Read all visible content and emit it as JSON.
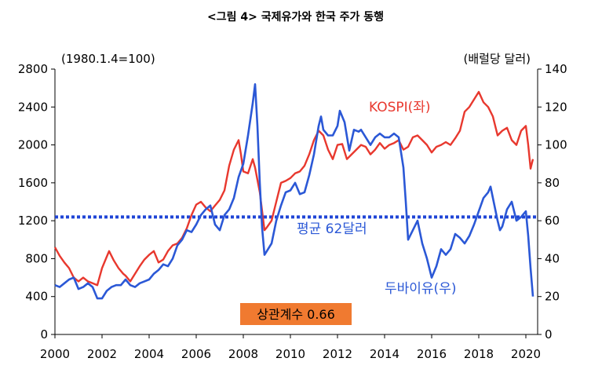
{
  "chart_data": {
    "type": "line",
    "title": "<그림 4> 국제유가와 한국 주가 동행",
    "left_unit": "(1980.1.4=100)",
    "right_unit": "(배럴당 달러)",
    "x_ticks": [
      "2000",
      "2002",
      "2004",
      "2006",
      "2008",
      "2010",
      "2012",
      "2014",
      "2016",
      "2018",
      "2020"
    ],
    "y_left_ticks": [
      0,
      400,
      800,
      1200,
      1600,
      2000,
      2400,
      2800
    ],
    "y_right_ticks": [
      0,
      20,
      40,
      60,
      80,
      100,
      120,
      140
    ],
    "ylim_left": [
      0,
      2800
    ],
    "ylim_right": [
      0,
      140
    ],
    "xlim": [
      2000,
      2020.5
    ],
    "series": [
      {
        "name": "KOSPI(좌)",
        "axis": "left",
        "color": "#e8382e",
        "points": [
          [
            2000.0,
            920
          ],
          [
            2000.2,
            830
          ],
          [
            2000.4,
            760
          ],
          [
            2000.6,
            700
          ],
          [
            2000.8,
            600
          ],
          [
            2001.0,
            560
          ],
          [
            2001.2,
            600
          ],
          [
            2001.4,
            560
          ],
          [
            2001.6,
            540
          ],
          [
            2001.8,
            520
          ],
          [
            2002.0,
            700
          ],
          [
            2002.2,
            820
          ],
          [
            2002.3,
            880
          ],
          [
            2002.5,
            780
          ],
          [
            2002.7,
            700
          ],
          [
            2002.9,
            640
          ],
          [
            2003.0,
            620
          ],
          [
            2003.2,
            560
          ],
          [
            2003.4,
            640
          ],
          [
            2003.6,
            720
          ],
          [
            2003.8,
            790
          ],
          [
            2004.0,
            840
          ],
          [
            2004.2,
            880
          ],
          [
            2004.4,
            760
          ],
          [
            2004.6,
            790
          ],
          [
            2004.8,
            880
          ],
          [
            2005.0,
            940
          ],
          [
            2005.2,
            960
          ],
          [
            2005.4,
            1020
          ],
          [
            2005.6,
            1120
          ],
          [
            2005.8,
            1260
          ],
          [
            2006.0,
            1370
          ],
          [
            2006.2,
            1400
          ],
          [
            2006.4,
            1340
          ],
          [
            2006.6,
            1300
          ],
          [
            2006.8,
            1360
          ],
          [
            2007.0,
            1420
          ],
          [
            2007.2,
            1520
          ],
          [
            2007.4,
            1780
          ],
          [
            2007.6,
            1950
          ],
          [
            2007.8,
            2050
          ],
          [
            2007.9,
            1900
          ],
          [
            2008.0,
            1720
          ],
          [
            2008.2,
            1700
          ],
          [
            2008.4,
            1850
          ],
          [
            2008.5,
            1760
          ],
          [
            2008.7,
            1500
          ],
          [
            2008.9,
            1100
          ],
          [
            2009.0,
            1130
          ],
          [
            2009.2,
            1200
          ],
          [
            2009.4,
            1400
          ],
          [
            2009.6,
            1600
          ],
          [
            2009.8,
            1620
          ],
          [
            2010.0,
            1650
          ],
          [
            2010.2,
            1700
          ],
          [
            2010.4,
            1720
          ],
          [
            2010.6,
            1780
          ],
          [
            2010.8,
            1900
          ],
          [
            2011.0,
            2050
          ],
          [
            2011.2,
            2150
          ],
          [
            2011.4,
            2100
          ],
          [
            2011.6,
            1950
          ],
          [
            2011.8,
            1850
          ],
          [
            2012.0,
            2000
          ],
          [
            2012.2,
            2010
          ],
          [
            2012.4,
            1850
          ],
          [
            2012.6,
            1900
          ],
          [
            2012.8,
            1950
          ],
          [
            2013.0,
            2000
          ],
          [
            2013.2,
            1980
          ],
          [
            2013.4,
            1900
          ],
          [
            2013.6,
            1950
          ],
          [
            2013.8,
            2020
          ],
          [
            2014.0,
            1960
          ],
          [
            2014.2,
            2000
          ],
          [
            2014.4,
            2020
          ],
          [
            2014.6,
            2050
          ],
          [
            2014.8,
            1950
          ],
          [
            2015.0,
            1980
          ],
          [
            2015.2,
            2080
          ],
          [
            2015.4,
            2100
          ],
          [
            2015.6,
            2050
          ],
          [
            2015.8,
            2000
          ],
          [
            2016.0,
            1920
          ],
          [
            2016.2,
            1980
          ],
          [
            2016.4,
            2000
          ],
          [
            2016.6,
            2030
          ],
          [
            2016.8,
            2000
          ],
          [
            2017.0,
            2070
          ],
          [
            2017.2,
            2150
          ],
          [
            2017.4,
            2350
          ],
          [
            2017.6,
            2400
          ],
          [
            2017.8,
            2480
          ],
          [
            2018.0,
            2560
          ],
          [
            2018.2,
            2450
          ],
          [
            2018.4,
            2400
          ],
          [
            2018.6,
            2300
          ],
          [
            2018.8,
            2100
          ],
          [
            2019.0,
            2150
          ],
          [
            2019.2,
            2180
          ],
          [
            2019.4,
            2050
          ],
          [
            2019.6,
            2000
          ],
          [
            2019.8,
            2150
          ],
          [
            2020.0,
            2200
          ],
          [
            2020.1,
            2000
          ],
          [
            2020.2,
            1750
          ],
          [
            2020.3,
            1850
          ]
        ]
      },
      {
        "name": "두바이유(우)",
        "axis": "right",
        "color": "#2b58d6",
        "points": [
          [
            2000.0,
            26
          ],
          [
            2000.2,
            25
          ],
          [
            2000.4,
            27
          ],
          [
            2000.6,
            29
          ],
          [
            2000.8,
            30
          ],
          [
            2001.0,
            24
          ],
          [
            2001.2,
            25
          ],
          [
            2001.4,
            27
          ],
          [
            2001.6,
            25
          ],
          [
            2001.8,
            19
          ],
          [
            2002.0,
            19
          ],
          [
            2002.2,
            23
          ],
          [
            2002.4,
            25
          ],
          [
            2002.6,
            26
          ],
          [
            2002.8,
            26
          ],
          [
            2003.0,
            29
          ],
          [
            2003.2,
            26
          ],
          [
            2003.4,
            25
          ],
          [
            2003.6,
            27
          ],
          [
            2003.8,
            28
          ],
          [
            2004.0,
            29
          ],
          [
            2004.2,
            32
          ],
          [
            2004.4,
            34
          ],
          [
            2004.6,
            37
          ],
          [
            2004.8,
            36
          ],
          [
            2005.0,
            40
          ],
          [
            2005.2,
            47
          ],
          [
            2005.4,
            50
          ],
          [
            2005.6,
            55
          ],
          [
            2005.8,
            54
          ],
          [
            2006.0,
            58
          ],
          [
            2006.2,
            63
          ],
          [
            2006.4,
            66
          ],
          [
            2006.6,
            68
          ],
          [
            2006.8,
            58
          ],
          [
            2007.0,
            55
          ],
          [
            2007.2,
            63
          ],
          [
            2007.4,
            66
          ],
          [
            2007.6,
            72
          ],
          [
            2007.8,
            83
          ],
          [
            2008.0,
            90
          ],
          [
            2008.2,
            105
          ],
          [
            2008.4,
            122
          ],
          [
            2008.5,
            132
          ],
          [
            2008.6,
            110
          ],
          [
            2008.7,
            80
          ],
          [
            2008.8,
            56
          ],
          [
            2008.9,
            42
          ],
          [
            2009.0,
            44
          ],
          [
            2009.2,
            48
          ],
          [
            2009.4,
            60
          ],
          [
            2009.6,
            68
          ],
          [
            2009.8,
            75
          ],
          [
            2010.0,
            76
          ],
          [
            2010.2,
            80
          ],
          [
            2010.4,
            74
          ],
          [
            2010.6,
            75
          ],
          [
            2010.8,
            84
          ],
          [
            2011.0,
            95
          ],
          [
            2011.2,
            110
          ],
          [
            2011.3,
            115
          ],
          [
            2011.4,
            108
          ],
          [
            2011.6,
            105
          ],
          [
            2011.8,
            105
          ],
          [
            2012.0,
            110
          ],
          [
            2012.1,
            118
          ],
          [
            2012.3,
            112
          ],
          [
            2012.5,
            97
          ],
          [
            2012.7,
            108
          ],
          [
            2012.9,
            107
          ],
          [
            2013.0,
            108
          ],
          [
            2013.2,
            104
          ],
          [
            2013.4,
            100
          ],
          [
            2013.6,
            104
          ],
          [
            2013.8,
            106
          ],
          [
            2014.0,
            104
          ],
          [
            2014.2,
            104
          ],
          [
            2014.4,
            106
          ],
          [
            2014.6,
            104
          ],
          [
            2014.8,
            88
          ],
          [
            2014.9,
            70
          ],
          [
            2015.0,
            50
          ],
          [
            2015.2,
            55
          ],
          [
            2015.4,
            60
          ],
          [
            2015.6,
            48
          ],
          [
            2015.8,
            40
          ],
          [
            2016.0,
            30
          ],
          [
            2016.2,
            36
          ],
          [
            2016.4,
            45
          ],
          [
            2016.6,
            42
          ],
          [
            2016.8,
            45
          ],
          [
            2017.0,
            53
          ],
          [
            2017.2,
            51
          ],
          [
            2017.4,
            48
          ],
          [
            2017.6,
            52
          ],
          [
            2017.8,
            58
          ],
          [
            2018.0,
            65
          ],
          [
            2018.2,
            72
          ],
          [
            2018.4,
            75
          ],
          [
            2018.5,
            78
          ],
          [
            2018.6,
            72
          ],
          [
            2018.8,
            60
          ],
          [
            2018.9,
            55
          ],
          [
            2019.0,
            57
          ],
          [
            2019.2,
            66
          ],
          [
            2019.4,
            70
          ],
          [
            2019.6,
            60
          ],
          [
            2019.8,
            62
          ],
          [
            2020.0,
            65
          ],
          [
            2020.1,
            52
          ],
          [
            2020.2,
            35
          ],
          [
            2020.3,
            20
          ]
        ]
      },
      {
        "name": "평균 62달러",
        "axis": "right",
        "color": "#1f45d6",
        "style": "dotted",
        "value": 62
      }
    ],
    "annotation": {
      "text": "상관계수 0.66",
      "background": "#f07a30"
    }
  }
}
